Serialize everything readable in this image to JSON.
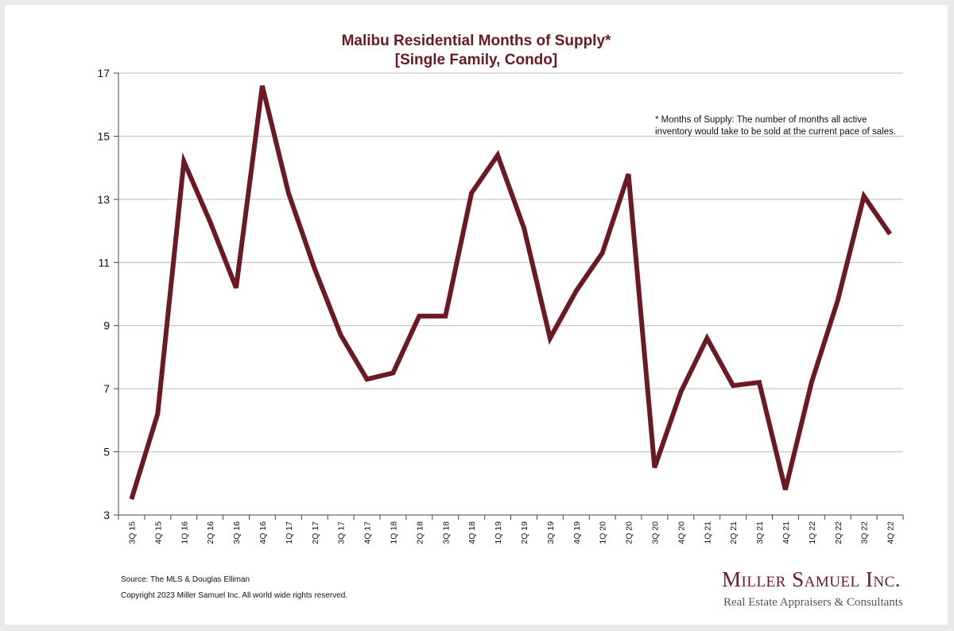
{
  "chart_data": {
    "type": "line",
    "title_lines": [
      "Malibu Residential Months of Supply*",
      "[Single Family, Condo]"
    ],
    "xlabel": "",
    "ylabel": "",
    "ylim": [
      3,
      17
    ],
    "yticks": [
      3,
      5,
      7,
      9,
      11,
      13,
      15,
      17
    ],
    "grid": true,
    "legend": "none",
    "categories": [
      "3Q 15",
      "4Q 15",
      "1Q 16",
      "2Q 16",
      "3Q 16",
      "4Q 16",
      "1Q 17",
      "2Q 17",
      "3Q 17",
      "4Q 17",
      "1Q 18",
      "2Q 18",
      "3Q 18",
      "4Q 18",
      "1Q 19",
      "2Q 19",
      "3Q 19",
      "4Q 19",
      "1Q 20",
      "2Q 20",
      "3Q 20",
      "4Q 20",
      "1Q 21",
      "2Q 21",
      "3Q 21",
      "4Q 21",
      "1Q 22",
      "2Q 22",
      "3Q 22",
      "4Q 22"
    ],
    "series": [
      {
        "values": [
          3.5,
          6.2,
          14.2,
          12.3,
          10.2,
          16.6,
          13.2,
          10.8,
          8.7,
          7.3,
          7.5,
          9.3,
          9.3,
          13.2,
          14.4,
          12.1,
          8.6,
          10.1,
          11.3,
          13.8,
          4.5,
          6.9,
          8.6,
          7.1,
          7.2,
          3.8,
          7.2,
          9.8,
          13.1,
          11.9
        ],
        "color": "#6b1a24"
      }
    ],
    "annotation_lines": [
      "* Months of Supply: The number of months all active",
      "inventory would take to be sold at the current pace of sales."
    ]
  },
  "source": "Source: The MLS & Douglas Elliman",
  "copyright": "Copyright 2023 Miller Samuel Inc.  All world wide rights reserved.",
  "brand": {
    "name": "Miller Samuel Inc.",
    "tagline": "Real Estate Appraisers & Consultants"
  },
  "colors": {
    "accent": "#6b1a24",
    "grid": "#bbbbbb"
  }
}
